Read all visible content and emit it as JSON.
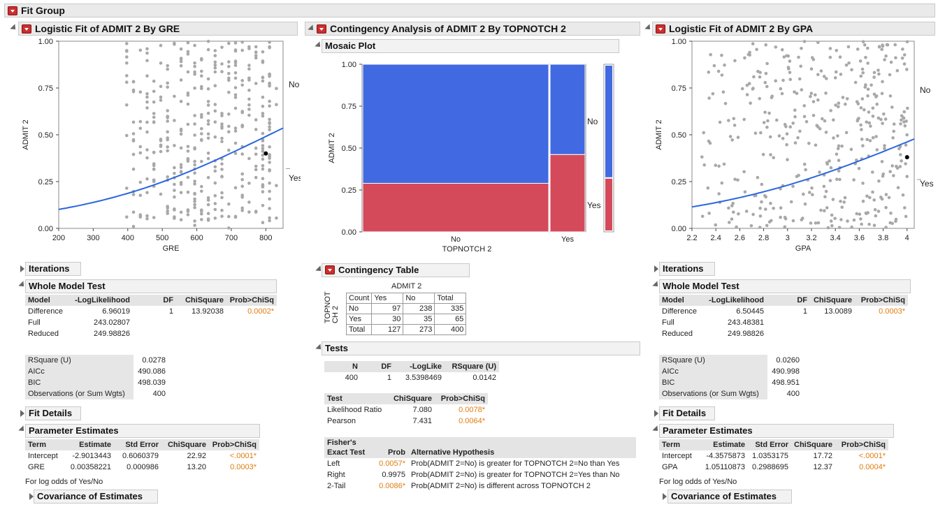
{
  "fit_group": {
    "title": "Fit Group"
  },
  "gre": {
    "title": "Logistic Fit of ADMIT 2 By GRE",
    "xlabel": "GRE",
    "ylabel": "ADMIT 2",
    "right_labels": [
      "No",
      "Yes"
    ],
    "xticks": [
      "200",
      "300",
      "400",
      "500",
      "600",
      "700",
      "800"
    ],
    "yticks": [
      "0.00",
      "0.25",
      "0.50",
      "0.75",
      "1.00"
    ],
    "iterations": "Iterations",
    "wmt_title": "Whole Model Test",
    "wmt_headers": [
      "Model",
      "-LogLikelihood",
      "DF",
      "ChiSquare",
      "Prob>ChiSq"
    ],
    "wmt_rows": [
      [
        "Difference",
        "6.96019",
        "1",
        "13.92038",
        "0.0002*"
      ],
      [
        "Full",
        "243.02807",
        "",
        "",
        ""
      ],
      [
        "Reduced",
        "249.98826",
        "",
        "",
        ""
      ]
    ],
    "stats": [
      [
        "RSquare (U)",
        "0.0278"
      ],
      [
        "AICc",
        "490.086"
      ],
      [
        "BIC",
        "498.039"
      ],
      [
        "Observations (or Sum Wgts)",
        "400"
      ]
    ],
    "fit_details": "Fit Details",
    "pe_title": "Parameter Estimates",
    "pe_headers": [
      "Term",
      "Estimate",
      "Std Error",
      "ChiSquare",
      "Prob>ChiSq"
    ],
    "pe_rows": [
      [
        "Intercept",
        "-2.9013443",
        "0.6060379",
        "22.92",
        "<.0001*"
      ],
      [
        "GRE",
        "0.00358221",
        "0.000986",
        "13.20",
        "0.0003*"
      ]
    ],
    "note": "For log odds of Yes/No",
    "cov": "Covariance of Estimates"
  },
  "gpa": {
    "title": "Logistic Fit of ADMIT 2 By GPA",
    "xlabel": "GPA",
    "ylabel": "ADMIT 2",
    "right_labels": [
      "No",
      "Yes"
    ],
    "xticks": [
      "2.2",
      "2.4",
      "2.6",
      "2.8",
      "3",
      "3.2",
      "3.4",
      "3.6",
      "3.8",
      "4"
    ],
    "yticks": [
      "0.00",
      "0.25",
      "0.50",
      "0.75",
      "1.00"
    ],
    "iterations": "Iterations",
    "wmt_title": "Whole Model Test",
    "wmt_headers": [
      "Model",
      "-LogLikelihood",
      "DF",
      "ChiSquare",
      "Prob>ChiSq"
    ],
    "wmt_rows": [
      [
        "Difference",
        "6.50445",
        "1",
        "13.0089",
        "0.0003*"
      ],
      [
        "Full",
        "243.48381",
        "",
        "",
        ""
      ],
      [
        "Reduced",
        "249.98826",
        "",
        "",
        ""
      ]
    ],
    "stats": [
      [
        "RSquare (U)",
        "0.0260"
      ],
      [
        "AICc",
        "490.998"
      ],
      [
        "BIC",
        "498.951"
      ],
      [
        "Observations (or Sum Wgts)",
        "400"
      ]
    ],
    "fit_details": "Fit Details",
    "pe_title": "Parameter Estimates",
    "pe_headers": [
      "Term",
      "Estimate",
      "Std Error",
      "ChiSquare",
      "Prob>ChiSq"
    ],
    "pe_rows": [
      [
        "Intercept",
        "-4.3575873",
        "1.0353175",
        "17.72",
        "<.0001*"
      ],
      [
        "GPA",
        "1.05110873",
        "0.2988695",
        "12.37",
        "0.0004*"
      ]
    ],
    "note": "For log odds of Yes/No",
    "cov": "Covariance of Estimates"
  },
  "cont": {
    "title": "Contingency Analysis of ADMIT 2 By TOPNOTCH 2",
    "mosaic_title": "Mosaic Plot",
    "xlabel": "TOPNOTCH 2",
    "ylabel": "ADMIT 2",
    "yticks": [
      "0.00",
      "0.25",
      "0.50",
      "0.75",
      "1.00"
    ],
    "xcats": [
      "No",
      "Yes"
    ],
    "right_labels": [
      "No",
      "Yes"
    ],
    "colors": {
      "no": "#4169e1",
      "yes": "#d44a5a"
    },
    "ct_title": "Contingency Table",
    "ct_col_title": "ADMIT 2",
    "ct_row_title": "TOPNOTCH 2",
    "ct_headers": [
      "Count",
      "Yes",
      "No",
      "Total"
    ],
    "ct_rows": [
      [
        "No",
        "97",
        "238",
        "335"
      ],
      [
        "Yes",
        "30",
        "35",
        "65"
      ],
      [
        "Total",
        "127",
        "273",
        "400"
      ]
    ],
    "tests_title": "Tests",
    "t1_headers": [
      "N",
      "DF",
      "-LogLike",
      "RSquare (U)"
    ],
    "t1_row": [
      "400",
      "1",
      "3.5398469",
      "0.0142"
    ],
    "t2_headers": [
      "Test",
      "ChiSquare",
      "Prob>ChiSq"
    ],
    "t2_rows": [
      [
        "Likelihood Ratio",
        "7.080",
        "0.0078*"
      ],
      [
        "Pearson",
        "7.431",
        "0.0064*"
      ]
    ],
    "fisher_headers": [
      "Fisher's",
      "Exact Test",
      "Prob",
      "Alternative Hypothesis"
    ],
    "fisher_rows": [
      [
        "Left",
        "0.0057*",
        "Prob(ADMIT 2=No) is greater for TOPNOTCH 2=No than Yes"
      ],
      [
        "Right",
        "0.9975",
        "Prob(ADMIT 2=No) is greater for TOPNOTCH 2=Yes than No"
      ],
      [
        "2-Tail",
        "0.0086*",
        "Prob(ADMIT 2=No) is different across TOPNOTCH 2"
      ]
    ]
  },
  "chart_data": [
    {
      "type": "scatter",
      "title": "Logistic Fit of ADMIT 2 By GRE",
      "xlabel": "GRE",
      "ylabel": "ADMIT 2",
      "xlim": [
        200,
        850
      ],
      "ylim": [
        0,
        1
      ],
      "curve": {
        "intercept": -2.9013443,
        "slope": 0.00358221,
        "x_range": [
          200,
          850
        ]
      },
      "highlight_point": {
        "x": 800,
        "y": 0.4
      }
    },
    {
      "type": "scatter",
      "title": "Logistic Fit of ADMIT 2 By GPA",
      "xlabel": "GPA",
      "ylabel": "ADMIT 2",
      "xlim": [
        2.2,
        4.06
      ],
      "ylim": [
        0,
        1
      ],
      "curve": {
        "intercept": -4.3575873,
        "slope": 1.05110873,
        "x_range": [
          2.2,
          4.06
        ]
      },
      "highlight_point": {
        "x": 4,
        "y": 0.38
      }
    },
    {
      "type": "mosaic",
      "title": "Mosaic Plot",
      "xlabel": "TOPNOTCH 2",
      "ylabel": "ADMIT 2",
      "categories": [
        "No",
        "Yes"
      ],
      "widths": [
        0.8375,
        0.1625
      ],
      "series": [
        {
          "name": "Yes",
          "values": [
            0.2896,
            0.4615
          ]
        },
        {
          "name": "No",
          "values": [
            0.7104,
            0.5385
          ]
        }
      ],
      "overall": {
        "Yes": 0.3175,
        "No": 0.6825
      }
    }
  ]
}
